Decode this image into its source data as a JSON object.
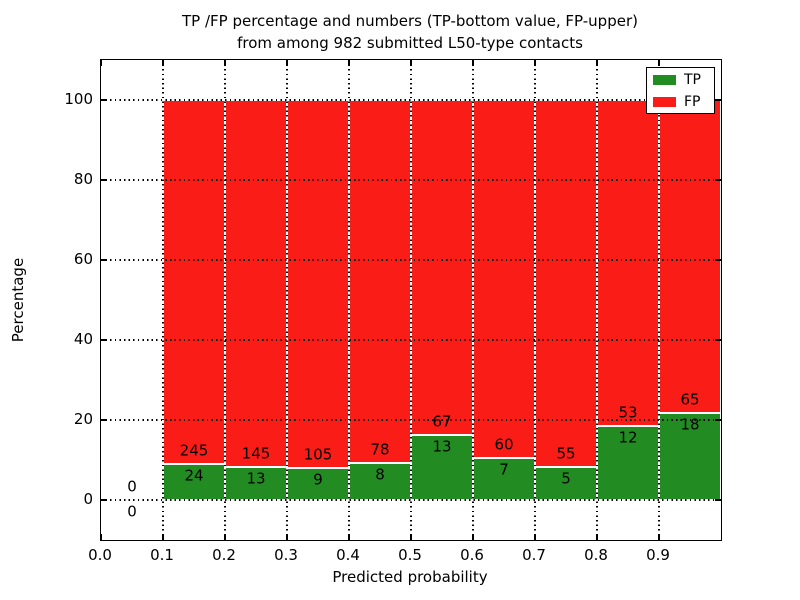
{
  "chart_data": {
    "type": "bar",
    "stacked": true,
    "normalized_to_percent": true,
    "title_line1": "TP /FP percentage and numbers (TP-bottom value, FP-upper)",
    "title_line2": "from among 982 submitted L50-type contacts",
    "xlabel": "Predicted probability",
    "ylabel": "Percentage",
    "xlim": [
      0.0,
      1.0
    ],
    "ylim": [
      -10,
      110
    ],
    "grid": "dotted black, drawn above bars",
    "x_ticks": [
      {
        "value": 0.0,
        "label": "0.0"
      },
      {
        "value": 0.1,
        "label": "0.1"
      },
      {
        "value": 0.2,
        "label": "0.2"
      },
      {
        "value": 0.3,
        "label": "0.3"
      },
      {
        "value": 0.4,
        "label": "0.4"
      },
      {
        "value": 0.5,
        "label": "0.5"
      },
      {
        "value": 0.6,
        "label": "0.6"
      },
      {
        "value": 0.7,
        "label": "0.7"
      },
      {
        "value": 0.8,
        "label": "0.8"
      },
      {
        "value": 0.9,
        "label": "0.9"
      }
    ],
    "y_ticks": [
      {
        "value": 0,
        "label": "0"
      },
      {
        "value": 20,
        "label": "20"
      },
      {
        "value": 40,
        "label": "40"
      },
      {
        "value": 60,
        "label": "60"
      },
      {
        "value": 80,
        "label": "80"
      },
      {
        "value": 100,
        "label": "100"
      }
    ],
    "legend": {
      "position": "upper right",
      "entries": [
        {
          "label": "TP",
          "color": "#228c23"
        },
        {
          "label": "FP",
          "color": "#fa1c16"
        }
      ]
    },
    "colors": {
      "tp": "#228c23",
      "fp": "#fa1c16",
      "bar_edge": "#ffffff"
    },
    "bins": [
      {
        "x0": 0.0,
        "x1": 0.1,
        "tp": 0,
        "fp": 0,
        "tp_pct": 0.0
      },
      {
        "x0": 0.1,
        "x1": 0.2,
        "tp": 24,
        "fp": 245,
        "tp_pct": 8.92
      },
      {
        "x0": 0.2,
        "x1": 0.3,
        "tp": 13,
        "fp": 145,
        "tp_pct": 8.23
      },
      {
        "x0": 0.3,
        "x1": 0.4,
        "tp": 9,
        "fp": 105,
        "tp_pct": 7.89
      },
      {
        "x0": 0.4,
        "x1": 0.5,
        "tp": 8,
        "fp": 78,
        "tp_pct": 9.3
      },
      {
        "x0": 0.5,
        "x1": 0.6,
        "tp": 13,
        "fp": 67,
        "tp_pct": 16.25
      },
      {
        "x0": 0.6,
        "x1": 0.7,
        "tp": 7,
        "fp": 60,
        "tp_pct": 10.45
      },
      {
        "x0": 0.7,
        "x1": 0.8,
        "tp": 5,
        "fp": 55,
        "tp_pct": 8.33
      },
      {
        "x0": 0.8,
        "x1": 0.9,
        "tp": 12,
        "fp": 53,
        "tp_pct": 18.46
      },
      {
        "x0": 0.9,
        "x1": 1.0,
        "tp": 18,
        "fp": 65,
        "tp_pct": 21.69
      }
    ]
  }
}
